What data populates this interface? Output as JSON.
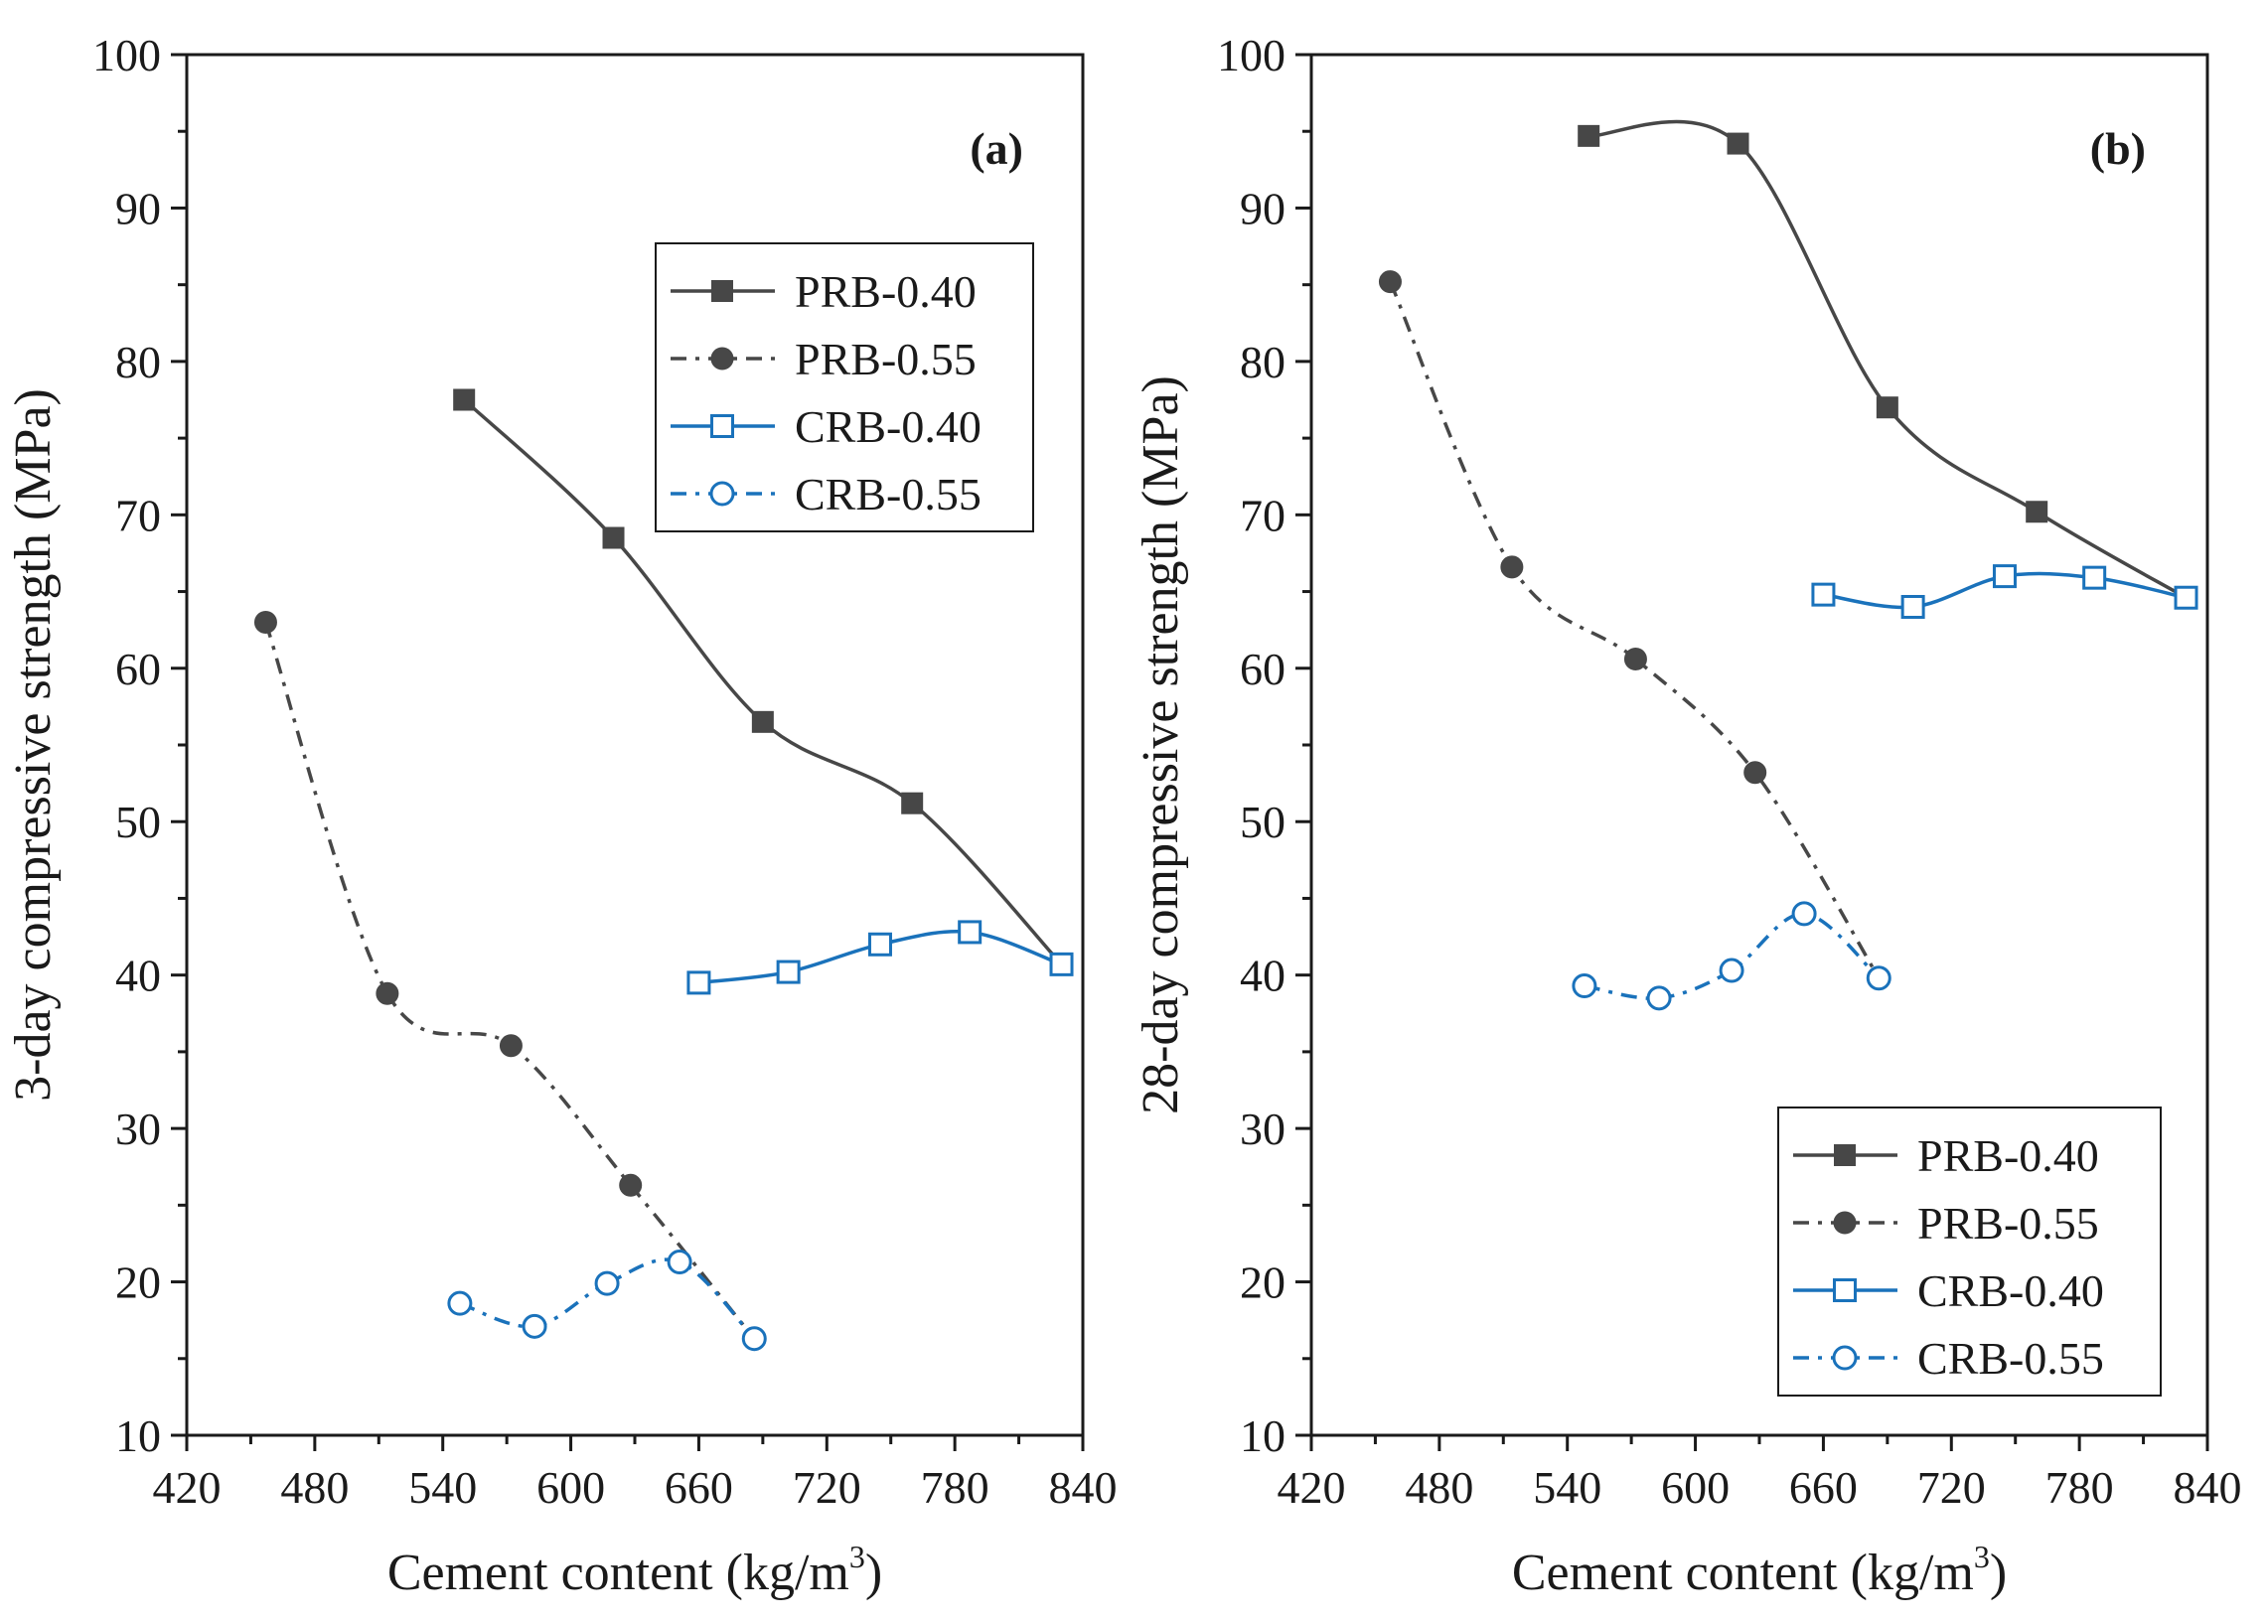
{
  "colors": {
    "gray": "#474747",
    "blue": "#1a72bb",
    "axis": "#1a1a1a"
  },
  "chart_data": [
    {
      "type": "line",
      "panel_label": "(a)",
      "xlabel": "Cement content (kg/m",
      "xlabel_sup": "3",
      "xlabel_end": ")",
      "ylabel": "3-day compressive strength (MPa)",
      "xlim": [
        420,
        840
      ],
      "ylim": [
        10,
        100
      ],
      "xticks": [
        "420",
        "480",
        "540",
        "600",
        "660",
        "720",
        "780",
        "840"
      ],
      "yticks": [
        "10",
        "20",
        "30",
        "40",
        "50",
        "60",
        "70",
        "80",
        "90",
        "100"
      ],
      "legend_position": "top-right",
      "series": [
        {
          "name": "PRB-0.40",
          "x": [
            550,
            620,
            690,
            760,
            830
          ],
          "y": [
            77.5,
            68.5,
            56.5,
            51.2,
            40.7
          ]
        },
        {
          "name": "PRB-0.55",
          "x": [
            457,
            514,
            572,
            628,
            686
          ],
          "y": [
            63.0,
            38.8,
            35.4,
            26.3,
            16.3
          ]
        },
        {
          "name": "CRB-0.40",
          "x": [
            660,
            702,
            745,
            787,
            830
          ],
          "y": [
            39.5,
            40.2,
            42.0,
            42.8,
            40.7
          ]
        },
        {
          "name": "CRB-0.55",
          "x": [
            548,
            583,
            617,
            651,
            686
          ],
          "y": [
            18.6,
            17.1,
            19.9,
            21.3,
            16.3
          ]
        }
      ]
    },
    {
      "type": "line",
      "panel_label": "(b)",
      "xlabel": "Cement content (kg/m",
      "xlabel_sup": "3",
      "xlabel_end": ")",
      "ylabel": "28-day compressive strength (MPa)",
      "xlim": [
        420,
        840
      ],
      "ylim": [
        10,
        100
      ],
      "xticks": [
        "420",
        "480",
        "540",
        "600",
        "660",
        "720",
        "780",
        "840"
      ],
      "yticks": [
        "10",
        "20",
        "30",
        "40",
        "50",
        "60",
        "70",
        "80",
        "90",
        "100"
      ],
      "legend_position": "bottom-right",
      "series": [
        {
          "name": "PRB-0.40",
          "x": [
            550,
            620,
            690,
            760,
            830
          ],
          "y": [
            94.7,
            94.2,
            77.0,
            70.2,
            64.6
          ]
        },
        {
          "name": "PRB-0.55",
          "x": [
            457,
            514,
            572,
            628,
            686
          ],
          "y": [
            85.2,
            66.6,
            60.6,
            53.2,
            39.8
          ]
        },
        {
          "name": "CRB-0.40",
          "x": [
            660,
            702,
            745,
            787,
            830
          ],
          "y": [
            64.8,
            64.0,
            66.0,
            65.9,
            64.6
          ]
        },
        {
          "name": "CRB-0.55",
          "x": [
            548,
            583,
            617,
            651,
            686
          ],
          "y": [
            39.3,
            38.5,
            40.3,
            44.0,
            39.8
          ]
        }
      ]
    }
  ]
}
